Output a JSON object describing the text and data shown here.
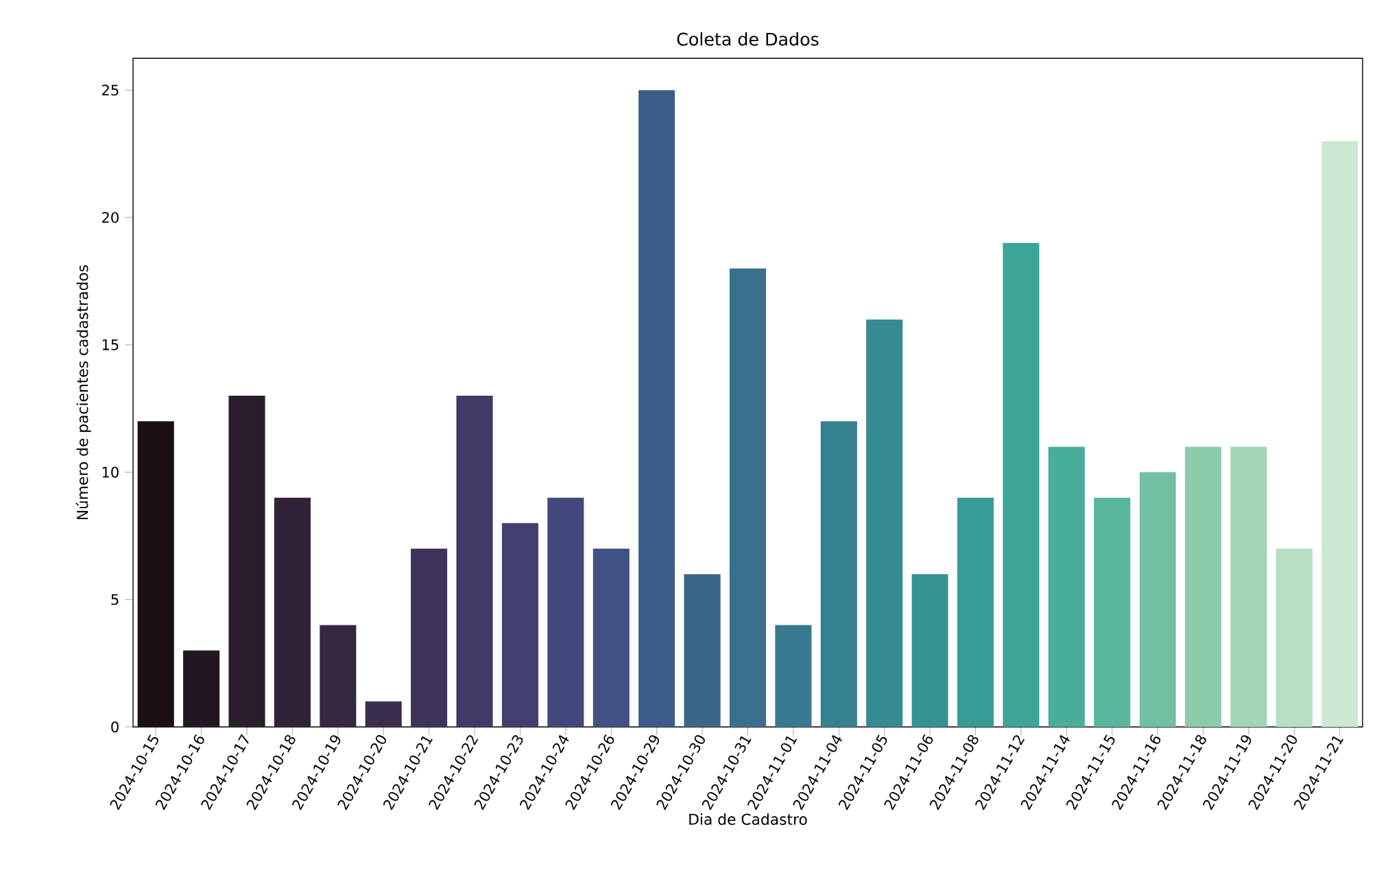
{
  "chart_data": {
    "type": "bar",
    "title": "Coleta de Dados",
    "xlabel": "Dia de Cadastro",
    "ylabel": "Número de pacientes cadastrados",
    "categories": [
      "2024-10-15",
      "2024-10-16",
      "2024-10-17",
      "2024-10-18",
      "2024-10-19",
      "2024-10-20",
      "2024-10-21",
      "2024-10-22",
      "2024-10-23",
      "2024-10-24",
      "2024-10-26",
      "2024-10-29",
      "2024-10-30",
      "2024-10-31",
      "2024-11-01",
      "2024-11-04",
      "2024-11-05",
      "2024-11-06",
      "2024-11-08",
      "2024-11-12",
      "2024-11-14",
      "2024-11-15",
      "2024-11-16",
      "2024-11-18",
      "2024-11-19",
      "2024-11-20",
      "2024-11-21"
    ],
    "values": [
      12,
      3,
      13,
      9,
      4,
      1,
      7,
      13,
      8,
      9,
      7,
      25,
      6,
      18,
      4,
      12,
      16,
      6,
      9,
      19,
      11,
      9,
      10,
      11,
      11,
      7,
      23
    ],
    "colors": [
      "#1a0f15",
      "#211720",
      "#2a1d2c",
      "#302337",
      "#352942",
      "#3a2e4e",
      "#3e3459",
      "#413a66",
      "#434071",
      "#43487c",
      "#405283",
      "#3d5d88",
      "#3b6689",
      "#39708d",
      "#37798e",
      "#368190",
      "#368a92",
      "#369394",
      "#389c96",
      "#3da597",
      "#49ae99",
      "#5ab69c",
      "#72c0a2",
      "#8bcbab",
      "#a2d5b6",
      "#b7dfc3",
      "#cbe9d2"
    ],
    "ylim": [
      0,
      26.25
    ],
    "yticks": [
      0,
      5,
      10,
      15,
      20,
      25
    ],
    "grid": false
  }
}
